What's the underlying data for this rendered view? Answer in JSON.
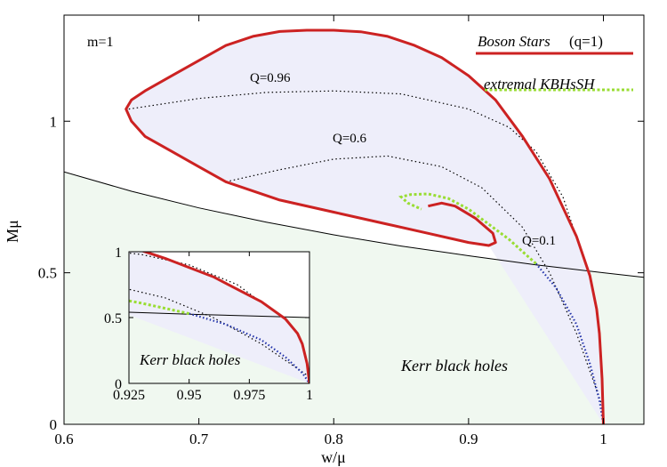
{
  "chart_data": {
    "type": "line",
    "xlabel": "w/μ",
    "ylabel": "Mμ",
    "xlim": [
      0.6,
      1.03
    ],
    "ylim": [
      0,
      1.35
    ],
    "xticks": [
      {
        "v": 0.6,
        "label": "0.6"
      },
      {
        "v": 0.7,
        "label": "0.7"
      },
      {
        "v": 0.8,
        "label": "0.8"
      },
      {
        "v": 0.9,
        "label": "0.9"
      },
      {
        "v": 1.0,
        "label": "1"
      }
    ],
    "yticks": [
      {
        "v": 0,
        "label": "0"
      },
      {
        "v": 0.5,
        "label": "0.5"
      },
      {
        "v": 1.0,
        "label": "1"
      }
    ],
    "annotations": {
      "m": "m=1",
      "q096": "Q=0.96",
      "q06": "Q=0.6",
      "q01": "Q=0.1",
      "kerr_main": "Kerr black holes",
      "kerr_inset": "Kerr black holes"
    },
    "legend": {
      "position": "top-right",
      "boson_label": "Boson Stars",
      "boson_suffix": "(q=1)",
      "extremal_label": "extremal KBHsSH"
    },
    "colors": {
      "boson": "#cc2222",
      "extremal": "#99dd33",
      "shade": "#eeeefa",
      "kerr_shade": "#f0f8f0",
      "dotted_blue": "#2233aa"
    },
    "series": [
      {
        "name": "Boson Stars (q=1)",
        "points": [
          [
            1.0,
            0.0
          ],
          [
            0.999,
            0.15
          ],
          [
            0.997,
            0.3
          ],
          [
            0.995,
            0.38
          ],
          [
            0.99,
            0.49
          ],
          [
            0.98,
            0.62
          ],
          [
            0.96,
            0.81
          ],
          [
            0.94,
            0.95
          ],
          [
            0.92,
            1.07
          ],
          [
            0.9,
            1.15
          ],
          [
            0.88,
            1.21
          ],
          [
            0.86,
            1.25
          ],
          [
            0.84,
            1.28
          ],
          [
            0.82,
            1.295
          ],
          [
            0.8,
            1.3
          ],
          [
            0.78,
            1.3
          ],
          [
            0.76,
            1.296
          ],
          [
            0.74,
            1.28
          ],
          [
            0.72,
            1.25
          ],
          [
            0.7,
            1.2
          ],
          [
            0.68,
            1.15
          ],
          [
            0.66,
            1.1
          ],
          [
            0.65,
            1.07
          ],
          [
            0.646,
            1.04
          ],
          [
            0.65,
            1.0
          ],
          [
            0.66,
            0.95
          ],
          [
            0.68,
            0.9
          ],
          [
            0.7,
            0.85
          ],
          [
            0.72,
            0.8
          ],
          [
            0.76,
            0.74
          ],
          [
            0.8,
            0.7
          ],
          [
            0.84,
            0.66
          ],
          [
            0.87,
            0.63
          ],
          [
            0.9,
            0.6
          ],
          [
            0.915,
            0.59
          ],
          [
            0.92,
            0.6
          ],
          [
            0.918,
            0.63
          ],
          [
            0.905,
            0.68
          ],
          [
            0.89,
            0.72
          ],
          [
            0.88,
            0.73
          ],
          [
            0.87,
            0.72
          ]
        ]
      },
      {
        "name": "extremal KBHsSH",
        "points": [
          [
            0.95,
            0.53
          ],
          [
            0.94,
            0.57
          ],
          [
            0.93,
            0.61
          ],
          [
            0.915,
            0.66
          ],
          [
            0.9,
            0.71
          ],
          [
            0.885,
            0.745
          ],
          [
            0.87,
            0.76
          ],
          [
            0.857,
            0.758
          ],
          [
            0.85,
            0.75
          ],
          [
            0.855,
            0.73
          ],
          [
            0.865,
            0.71
          ]
        ]
      },
      {
        "name": "Q=0.96",
        "points": [
          [
            0.648,
            1.04
          ],
          [
            0.7,
            1.075
          ],
          [
            0.75,
            1.095
          ],
          [
            0.8,
            1.1
          ],
          [
            0.85,
            1.09
          ],
          [
            0.9,
            1.04
          ],
          [
            0.93,
            0.98
          ],
          [
            0.95,
            0.9
          ],
          [
            0.97,
            0.75
          ],
          [
            0.985,
            0.55
          ]
        ]
      },
      {
        "name": "Q=0.6",
        "points": [
          [
            0.72,
            0.8
          ],
          [
            0.76,
            0.84
          ],
          [
            0.8,
            0.875
          ],
          [
            0.84,
            0.885
          ],
          [
            0.88,
            0.85
          ],
          [
            0.91,
            0.78
          ],
          [
            0.94,
            0.65
          ],
          [
            0.96,
            0.5
          ],
          [
            0.98,
            0.3
          ],
          [
            1.0,
            0.05
          ]
        ]
      },
      {
        "name": "extremal Kerr (Mμ = 1/(2 w/μ))",
        "points": [
          [
            0.6,
            0.833
          ],
          [
            0.65,
            0.769
          ],
          [
            0.7,
            0.714
          ],
          [
            0.75,
            0.667
          ],
          [
            0.8,
            0.625
          ],
          [
            0.85,
            0.588
          ],
          [
            0.9,
            0.556
          ],
          [
            0.95,
            0.526
          ],
          [
            1.0,
            0.5
          ],
          [
            1.03,
            0.485
          ]
        ]
      },
      {
        "name": "Q=0.1 / blue dotted",
        "points": [
          [
            0.95,
            0.53
          ],
          [
            0.965,
            0.45
          ],
          [
            0.98,
            0.33
          ],
          [
            0.99,
            0.2
          ],
          [
            0.997,
            0.08
          ],
          [
            1.0,
            0.0
          ]
        ]
      }
    ],
    "inset": {
      "xlim": [
        0.925,
        1.0
      ],
      "ylim": [
        0,
        1.0
      ],
      "xticks": [
        {
          "v": 0.925,
          "label": "0.925"
        },
        {
          "v": 0.95,
          "label": "0.95"
        },
        {
          "v": 0.975,
          "label": "0.975"
        },
        {
          "v": 1.0,
          "label": "1"
        }
      ],
      "yticks": [
        {
          "v": 0,
          "label": "0"
        },
        {
          "v": 0.5,
          "label": "0.5"
        },
        {
          "v": 1.0,
          "label": "1"
        }
      ]
    }
  }
}
